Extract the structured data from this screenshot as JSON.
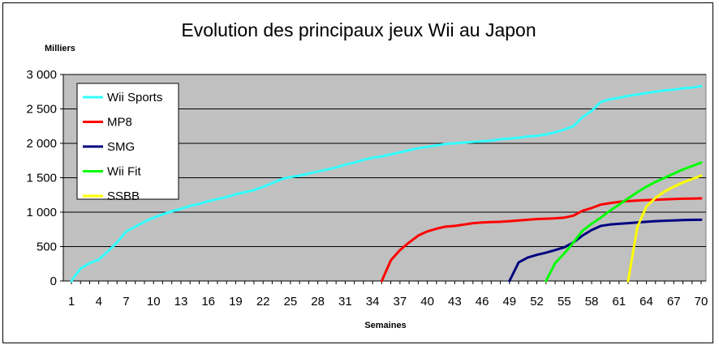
{
  "chart_data": {
    "type": "line",
    "title": "Evolution des principaux jeux Wii au Japon",
    "ylabel": "Milliers",
    "xlabel": "Semaines",
    "ylim": [
      0,
      3000
    ],
    "xlim": [
      1,
      70
    ],
    "y_ticks": [
      0,
      500,
      1000,
      1500,
      2000,
      2500,
      3000
    ],
    "y_tick_labels": [
      "0",
      "500",
      "1 000",
      "1 500",
      "2 000",
      "2 500",
      "3 000"
    ],
    "x_ticks": [
      1,
      4,
      7,
      10,
      13,
      16,
      19,
      22,
      25,
      28,
      31,
      34,
      37,
      40,
      43,
      46,
      49,
      52,
      55,
      58,
      61,
      64,
      67,
      70
    ],
    "grid": true,
    "plot_background": "#c0c0c0",
    "legend_position": "top-left",
    "series": [
      {
        "name": "Wii Sports",
        "color": "#33ffff",
        "points": [
          [
            1,
            0
          ],
          [
            2,
            180
          ],
          [
            3,
            260
          ],
          [
            4,
            310
          ],
          [
            5,
            430
          ],
          [
            6,
            560
          ],
          [
            7,
            720
          ],
          [
            8,
            790
          ],
          [
            9,
            860
          ],
          [
            10,
            920
          ],
          [
            11,
            970
          ],
          [
            12,
            1010
          ],
          [
            13,
            1050
          ],
          [
            14,
            1090
          ],
          [
            15,
            1120
          ],
          [
            16,
            1160
          ],
          [
            17,
            1190
          ],
          [
            18,
            1220
          ],
          [
            19,
            1260
          ],
          [
            20,
            1290
          ],
          [
            21,
            1320
          ],
          [
            22,
            1370
          ],
          [
            23,
            1420
          ],
          [
            24,
            1480
          ],
          [
            25,
            1510
          ],
          [
            26,
            1530
          ],
          [
            27,
            1560
          ],
          [
            28,
            1590
          ],
          [
            29,
            1620
          ],
          [
            30,
            1650
          ],
          [
            31,
            1690
          ],
          [
            32,
            1720
          ],
          [
            33,
            1760
          ],
          [
            34,
            1790
          ],
          [
            35,
            1810
          ],
          [
            36,
            1840
          ],
          [
            37,
            1870
          ],
          [
            38,
            1900
          ],
          [
            39,
            1930
          ],
          [
            40,
            1950
          ],
          [
            41,
            1970
          ],
          [
            42,
            1990
          ],
          [
            43,
            2000
          ],
          [
            44,
            2010
          ],
          [
            45,
            2020
          ],
          [
            46,
            2030
          ],
          [
            47,
            2040
          ],
          [
            48,
            2060
          ],
          [
            49,
            2070
          ],
          [
            50,
            2080
          ],
          [
            51,
            2100
          ],
          [
            52,
            2110
          ],
          [
            53,
            2130
          ],
          [
            54,
            2160
          ],
          [
            55,
            2200
          ],
          [
            56,
            2250
          ],
          [
            57,
            2380
          ],
          [
            58,
            2470
          ],
          [
            59,
            2600
          ],
          [
            60,
            2640
          ],
          [
            61,
            2660
          ],
          [
            62,
            2690
          ],
          [
            63,
            2710
          ],
          [
            64,
            2730
          ],
          [
            65,
            2750
          ],
          [
            66,
            2770
          ],
          [
            67,
            2780
          ],
          [
            68,
            2800
          ],
          [
            69,
            2810
          ],
          [
            70,
            2830
          ]
        ]
      },
      {
        "name": "MP8",
        "color": "#ff0000",
        "points": [
          [
            35,
            0
          ],
          [
            36,
            300
          ],
          [
            37,
            450
          ],
          [
            38,
            560
          ],
          [
            39,
            660
          ],
          [
            40,
            720
          ],
          [
            41,
            760
          ],
          [
            42,
            790
          ],
          [
            43,
            800
          ],
          [
            44,
            820
          ],
          [
            45,
            840
          ],
          [
            46,
            850
          ],
          [
            47,
            855
          ],
          [
            48,
            860
          ],
          [
            49,
            870
          ],
          [
            50,
            880
          ],
          [
            51,
            890
          ],
          [
            52,
            900
          ],
          [
            53,
            905
          ],
          [
            54,
            910
          ],
          [
            55,
            920
          ],
          [
            56,
            950
          ],
          [
            57,
            1020
          ],
          [
            58,
            1060
          ],
          [
            59,
            1110
          ],
          [
            60,
            1130
          ],
          [
            61,
            1150
          ],
          [
            62,
            1160
          ],
          [
            63,
            1170
          ],
          [
            64,
            1175
          ],
          [
            65,
            1180
          ],
          [
            66,
            1185
          ],
          [
            67,
            1190
          ],
          [
            68,
            1195
          ],
          [
            69,
            1198
          ],
          [
            70,
            1200
          ]
        ]
      },
      {
        "name": "SMG",
        "color": "#000080",
        "points": [
          [
            49,
            0
          ],
          [
            50,
            270
          ],
          [
            51,
            340
          ],
          [
            52,
            380
          ],
          [
            53,
            410
          ],
          [
            54,
            450
          ],
          [
            55,
            490
          ],
          [
            56,
            560
          ],
          [
            57,
            660
          ],
          [
            58,
            740
          ],
          [
            59,
            800
          ],
          [
            60,
            820
          ],
          [
            61,
            830
          ],
          [
            62,
            840
          ],
          [
            63,
            850
          ],
          [
            64,
            860
          ],
          [
            65,
            870
          ],
          [
            66,
            875
          ],
          [
            67,
            880
          ],
          [
            68,
            885
          ],
          [
            69,
            888
          ],
          [
            70,
            890
          ]
        ]
      },
      {
        "name": "Wii Fit",
        "color": "#00ff00",
        "points": [
          [
            53,
            0
          ],
          [
            54,
            260
          ],
          [
            55,
            400
          ],
          [
            56,
            560
          ],
          [
            57,
            730
          ],
          [
            58,
            830
          ],
          [
            59,
            920
          ],
          [
            60,
            1020
          ],
          [
            61,
            1110
          ],
          [
            62,
            1200
          ],
          [
            63,
            1290
          ],
          [
            64,
            1370
          ],
          [
            65,
            1440
          ],
          [
            66,
            1500
          ],
          [
            67,
            1560
          ],
          [
            68,
            1620
          ],
          [
            69,
            1670
          ],
          [
            70,
            1720
          ]
        ]
      },
      {
        "name": "SSBB",
        "color": "#ffff00",
        "points": [
          [
            62,
            0
          ],
          [
            63,
            780
          ],
          [
            64,
            1080
          ],
          [
            65,
            1210
          ],
          [
            66,
            1300
          ],
          [
            67,
            1370
          ],
          [
            68,
            1430
          ],
          [
            69,
            1480
          ],
          [
            70,
            1530
          ]
        ]
      }
    ]
  }
}
